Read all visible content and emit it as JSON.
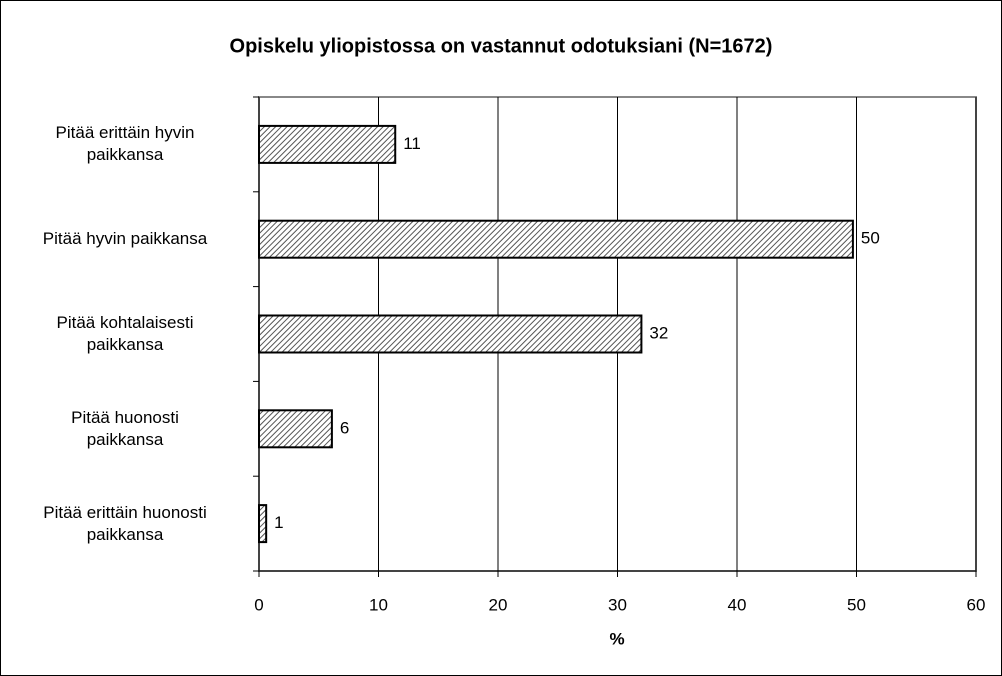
{
  "chart_data": {
    "type": "barh",
    "title": "Opiskelu yliopistossa on vastannut odotuksiani (N=1672)",
    "categories": [
      "Pitää erittäin hyvin\npaikkansa",
      "Pitää hyvin paikkansa",
      "Pitää kohtalaisesti\npaikkansa",
      "Pitää huonosti\npaikkansa",
      "Pitää erittäin huonosti\npaikkansa"
    ],
    "values": [
      11.4,
      49.7,
      32.0,
      6.1,
      0.6
    ],
    "value_labels": [
      "11",
      "50",
      "32",
      "6",
      "1"
    ],
    "xlabel": "%",
    "xlim": [
      0,
      60
    ],
    "xticks": [
      0,
      10,
      20,
      30,
      40,
      50,
      60
    ],
    "grid": true,
    "color": "#555555"
  }
}
